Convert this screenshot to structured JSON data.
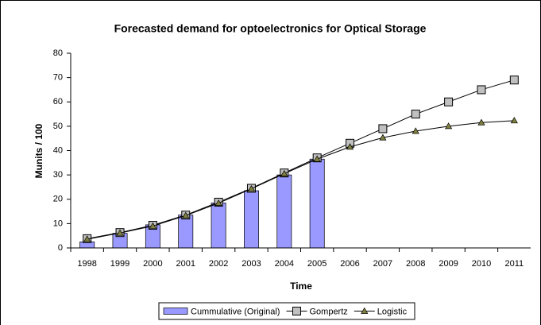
{
  "chart_data": {
    "type": "combo",
    "title": "Forecasted demand for optoelectronics for Optical Storage",
    "x_label": "Time",
    "y_label": "Munits / 100",
    "categories": [
      "1998",
      "1999",
      "2000",
      "2001",
      "2002",
      "2003",
      "2004",
      "2005",
      "2006",
      "2007",
      "2008",
      "2009",
      "2010",
      "2011"
    ],
    "series": [
      {
        "name": "Cummulative (Original)",
        "type": "bar",
        "color": "#9999ff",
        "values": [
          2.5,
          6,
          9.5,
          13.5,
          18.5,
          23.5,
          30,
          36.5,
          null,
          null,
          null,
          null,
          null,
          null
        ]
      },
      {
        "name": "Gompertz",
        "type": "line",
        "marker": "square",
        "color": "#c0c0c0",
        "values": [
          3.8,
          6.3,
          9.3,
          13.5,
          18.8,
          24.5,
          30.8,
          37,
          43,
          49,
          55,
          60,
          65,
          69
        ]
      },
      {
        "name": "Logistic",
        "type": "line",
        "marker": "triangle",
        "color": "#808040",
        "values": [
          3.6,
          6.1,
          9.0,
          13.3,
          18.4,
          24.3,
          30.5,
          36.5,
          41.5,
          45.3,
          48,
          50,
          51.5,
          52.3
        ]
      }
    ],
    "ylim": [
      0,
      80
    ],
    "yticks": [
      0,
      10,
      20,
      30,
      40,
      50,
      60,
      70,
      80
    ],
    "grid": false,
    "legend": "bottom"
  }
}
